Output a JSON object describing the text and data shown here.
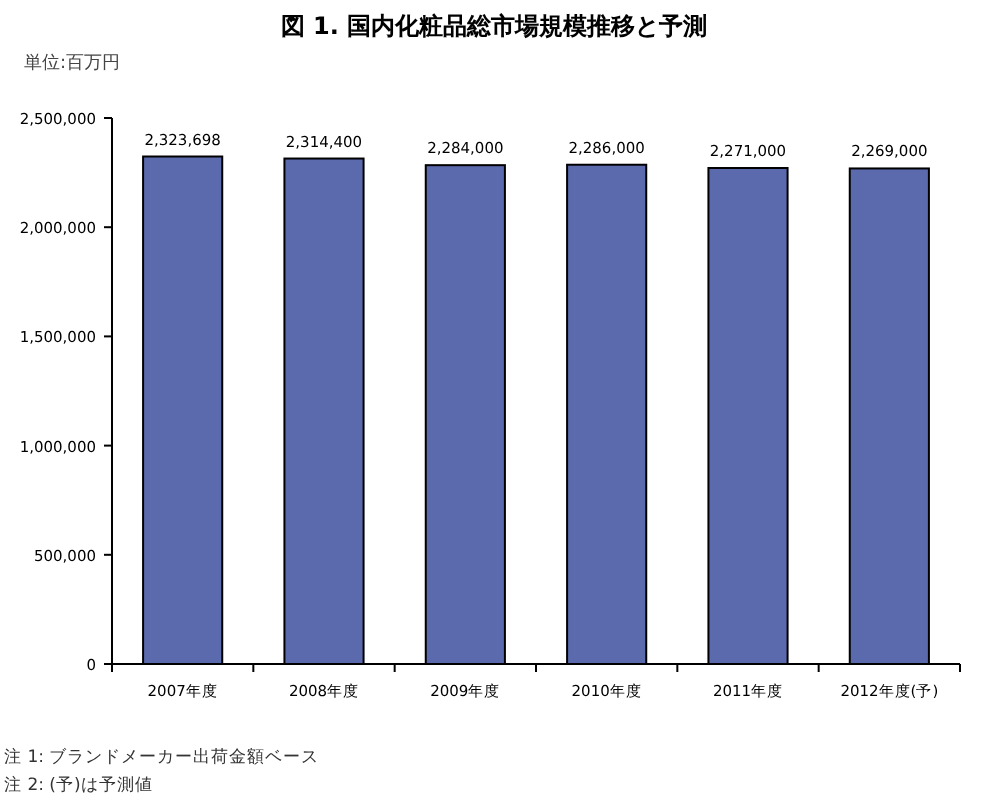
{
  "chart_data": {
    "type": "bar",
    "title": "図 1.  国内化粧品総市場規模推移と予測",
    "ylabel": "単位:百万円",
    "categories": [
      "2007年度",
      "2008年度",
      "2009年度",
      "2010年度",
      "2011年度",
      "2012年度(予)"
    ],
    "values": [
      2323698,
      2314400,
      2284000,
      2286000,
      2271000,
      2269000
    ],
    "value_labels": [
      "2,323,698",
      "2,314,400",
      "2,284,000",
      "2,286,000",
      "2,271,000",
      "2,269,000"
    ],
    "color": "#5b69ad",
    "ylim": [
      0,
      2500000
    ],
    "yticks": [
      {
        "value": 0,
        "label": "0"
      },
      {
        "value": 500000,
        "label": "500,000"
      },
      {
        "value": 1000000,
        "label": "1,000,000"
      },
      {
        "value": 1500000,
        "label": "1,500,000"
      },
      {
        "value": 2000000,
        "label": "2,000,000"
      },
      {
        "value": 2500000,
        "label": "2,500,000"
      }
    ],
    "annotations": [
      "注 1: ブランドメーカー出荷金額ベース",
      "注 2: (予)は予測値"
    ]
  }
}
